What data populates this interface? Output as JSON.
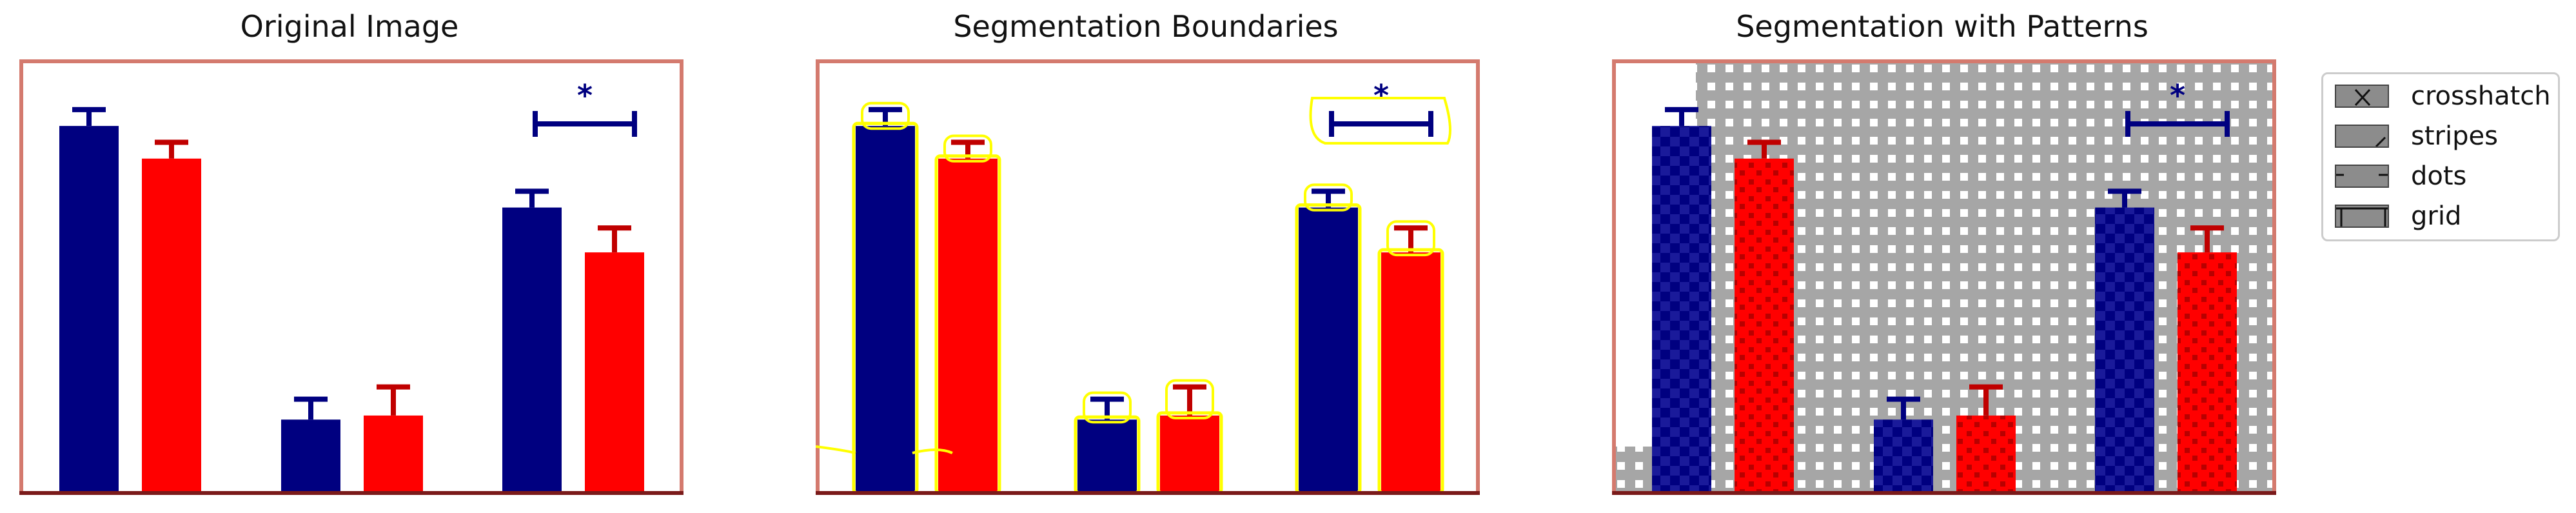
{
  "panels": [
    {
      "id": "original",
      "title": "Original Image"
    },
    {
      "id": "boundaries",
      "title": "Segmentation Boundaries"
    },
    {
      "id": "patterns",
      "title": "Segmentation with Patterns"
    }
  ],
  "legend": {
    "placement": "right",
    "items": [
      {
        "label": "crosshatch",
        "pattern": "crosshatch"
      },
      {
        "label": "stripes",
        "pattern": "stripes"
      },
      {
        "label": "dots",
        "pattern": "dots"
      },
      {
        "label": "grid",
        "pattern": "grid"
      }
    ]
  },
  "chart_data": {
    "type": "bar",
    "ylim": [
      0,
      100
    ],
    "groups": 3,
    "series": [
      {
        "color": "#000080",
        "values": [
          90,
          18,
          70
        ],
        "errors": [
          4,
          5,
          4
        ]
      },
      {
        "color": "#ff0000",
        "values": [
          82,
          19,
          59
        ],
        "errors": [
          4,
          7,
          6
        ]
      }
    ],
    "significance": {
      "label": "*",
      "group": 2
    },
    "colors": {
      "frame": "#d47a6e",
      "baseline": "#7a1a1a",
      "boundary": "#ffff00",
      "background_pattern": "#a6a6a6"
    }
  }
}
